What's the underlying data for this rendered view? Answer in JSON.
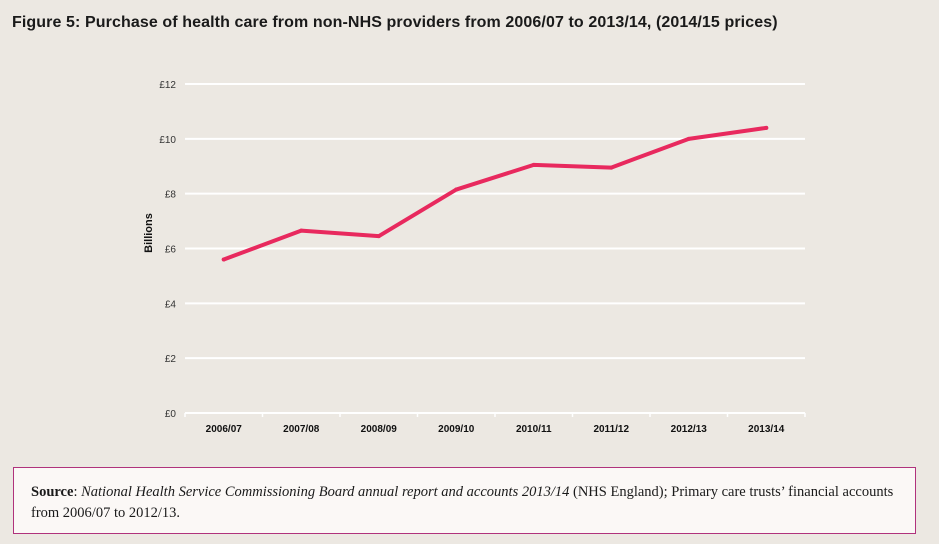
{
  "figure_title": "Figure 5: Purchase of health care from non-NHS providers from 2006/07 to 2013/14, (2014/15 prices)",
  "colors": {
    "line": "#e8295e",
    "grid": "#ffffff",
    "background": "#ece8e2",
    "source_border": "#b0327c"
  },
  "chart_data": {
    "type": "line",
    "title": "Figure 5: Purchase of health care from non-NHS providers from 2006/07 to 2013/14, (2014/15 prices)",
    "xlabel": "",
    "ylabel": "Billions",
    "categories": [
      "2006/07",
      "2007/08",
      "2008/09",
      "2009/10",
      "2010/11",
      "2011/12",
      "2012/13",
      "2013/14"
    ],
    "series": [
      {
        "name": "Purchase of health care from non-NHS providers",
        "values": [
          5.6,
          6.65,
          6.45,
          8.15,
          9.05,
          8.95,
          10.0,
          10.4
        ]
      }
    ],
    "ylim": [
      0,
      12
    ],
    "yticks": [
      0,
      2,
      4,
      6,
      8,
      10,
      12
    ],
    "ytick_labels": [
      "£0",
      "£2",
      "£4",
      "£6",
      "£8",
      "£10",
      "£12"
    ],
    "grid": true,
    "legend": "none"
  },
  "source": {
    "label": "Source",
    "separator": ": ",
    "italic_text": "National Health Service Commissioning Board annual report and accounts 2013/14",
    "plain_text": " (NHS England); Primary care trusts’ financial accounts from 2006/07 to 2012/13."
  }
}
